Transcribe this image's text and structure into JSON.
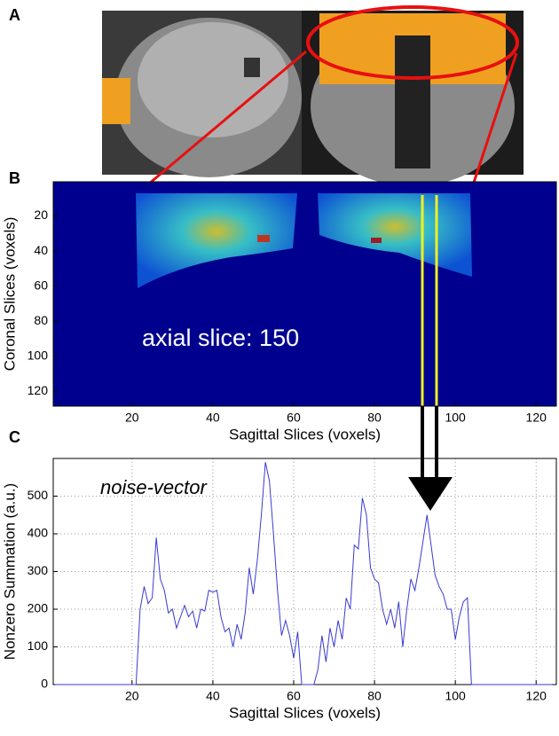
{
  "panel_labels": [
    "A",
    "B",
    "C"
  ],
  "chart_data": [
    {
      "type": "heatmap",
      "annotation": "axial slice: 150",
      "xlabel": "Sagittal Slices (voxels)",
      "ylabel": "Coronal Slices (voxels)",
      "xlim": [
        0.5,
        125
      ],
      "ylim": [
        0.5,
        128.5
      ],
      "y_reversed": true,
      "xticks": [
        20,
        40,
        60,
        80,
        100,
        120
      ],
      "yticks": [
        20,
        40,
        60,
        80,
        100,
        120
      ]
    },
    {
      "type": "line",
      "annotation": "noise-vector",
      "xlabel": "Sagittal Slices (voxels)",
      "ylabel": "Nonzero Summation (a.u.)",
      "xlim": [
        0.5,
        125
      ],
      "ylim": [
        0,
        600
      ],
      "xticks": [
        20,
        40,
        60,
        80,
        100,
        120
      ],
      "yticks": [
        0,
        100,
        200,
        300,
        400,
        500
      ],
      "grid": true,
      "color": "#3a3ad0",
      "x": [
        1,
        2,
        3,
        4,
        5,
        6,
        7,
        8,
        9,
        10,
        11,
        12,
        13,
        14,
        15,
        16,
        17,
        18,
        19,
        20,
        21,
        22,
        23,
        24,
        25,
        26,
        27,
        28,
        29,
        30,
        31,
        32,
        33,
        34,
        35,
        36,
        37,
        38,
        39,
        40,
        41,
        42,
        43,
        44,
        45,
        46,
        47,
        48,
        49,
        50,
        51,
        52,
        53,
        54,
        55,
        56,
        57,
        58,
        59,
        60,
        61,
        62,
        63,
        64,
        65,
        66,
        67,
        68,
        69,
        70,
        71,
        72,
        73,
        74,
        75,
        76,
        77,
        78,
        79,
        80,
        81,
        82,
        83,
        84,
        85,
        86,
        87,
        88,
        89,
        90,
        91,
        92,
        93,
        94,
        95,
        96,
        97,
        98,
        99,
        100,
        101,
        102,
        103,
        104,
        105,
        106,
        107,
        108,
        109,
        110,
        111,
        112,
        113,
        114,
        115,
        116,
        117,
        118,
        119,
        120,
        121,
        122,
        123,
        124
      ],
      "values": [
        0,
        0,
        0,
        0,
        0,
        0,
        0,
        0,
        0,
        0,
        0,
        0,
        0,
        0,
        0,
        0,
        0,
        0,
        0,
        0,
        0,
        200,
        260,
        215,
        230,
        390,
        280,
        250,
        190,
        200,
        150,
        180,
        210,
        180,
        195,
        150,
        200,
        195,
        250,
        245,
        250,
        180,
        140,
        150,
        100,
        160,
        120,
        190,
        310,
        240,
        330,
        450,
        590,
        540,
        400,
        250,
        130,
        170,
        130,
        70,
        140,
        0,
        0,
        0,
        0,
        40,
        130,
        60,
        150,
        100,
        170,
        120,
        230,
        200,
        370,
        360,
        495,
        450,
        310,
        280,
        270,
        200,
        160,
        200,
        150,
        220,
        100,
        200,
        280,
        250,
        310,
        380,
        450,
        370,
        290,
        260,
        240,
        200,
        200,
        120,
        180,
        220,
        230,
        0,
        0,
        0,
        0,
        0,
        0,
        0,
        0,
        0,
        0,
        0,
        0,
        0,
        0,
        0,
        0,
        0,
        0,
        0,
        0,
        0
      ]
    }
  ]
}
